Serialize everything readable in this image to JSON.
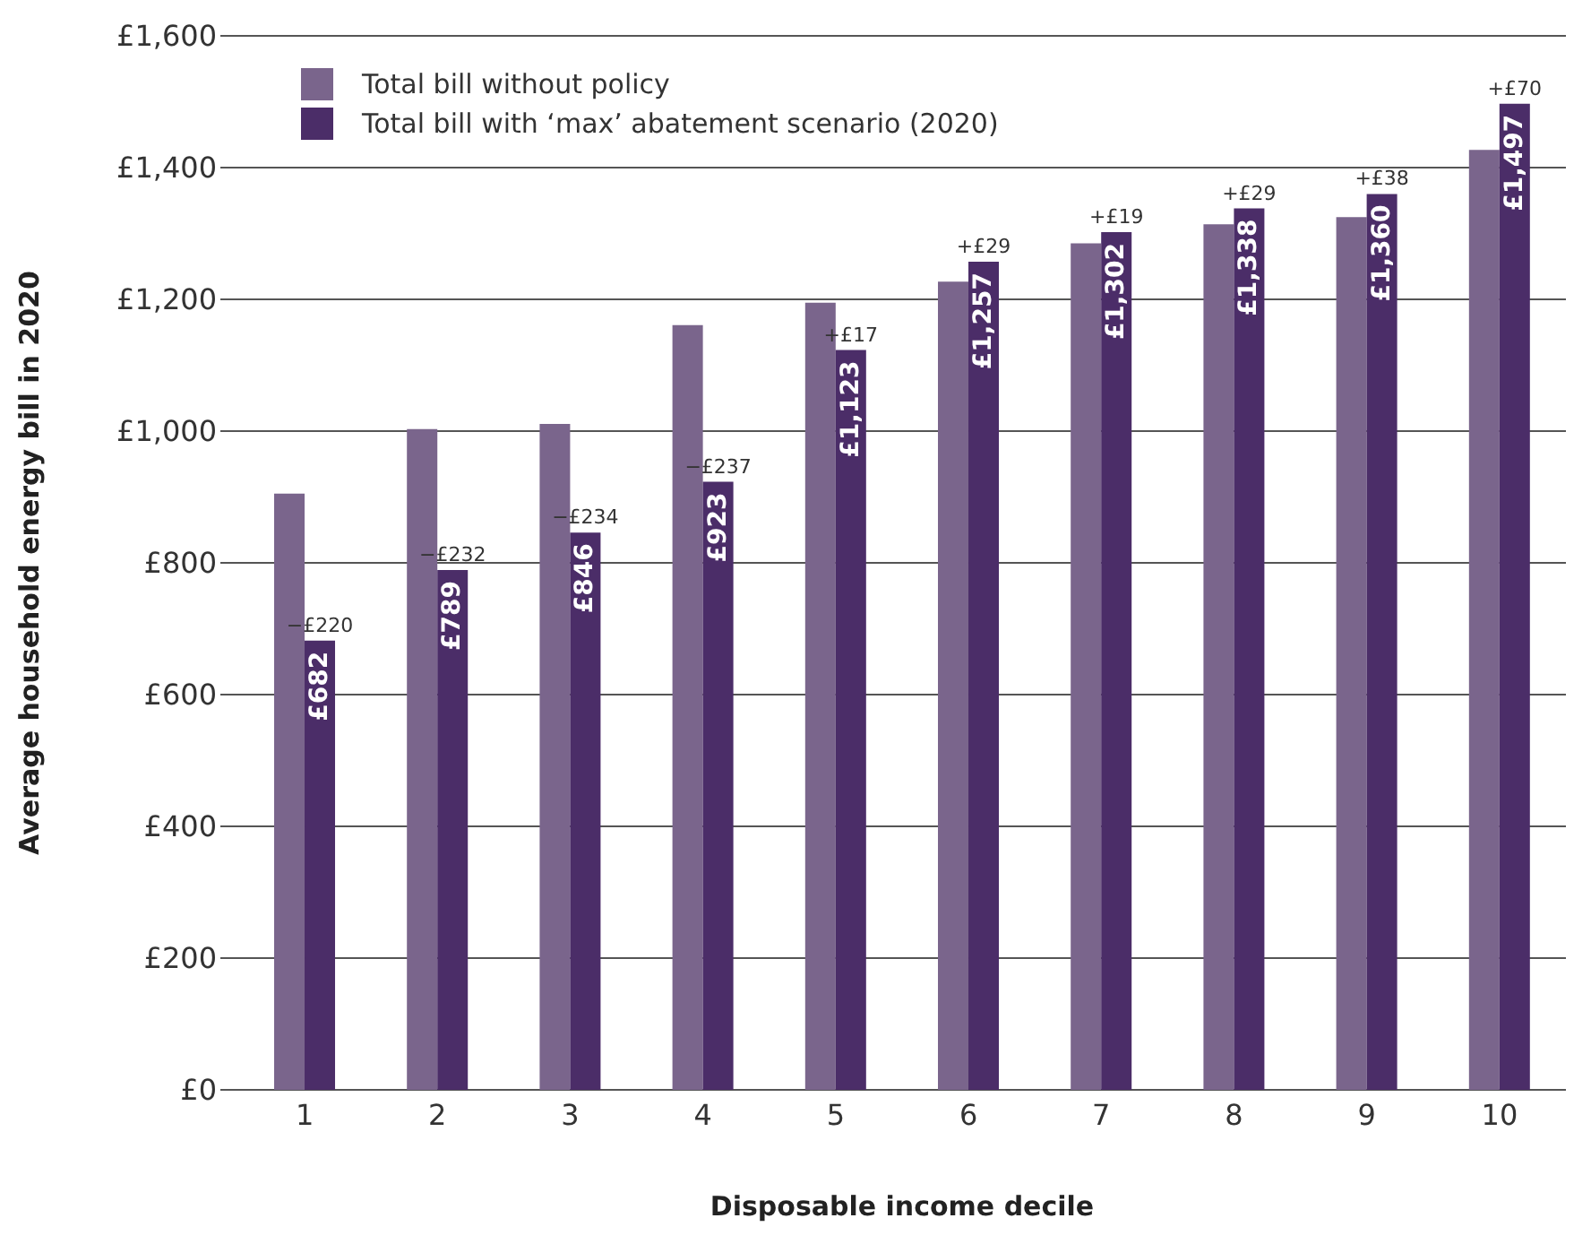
{
  "chart_data": {
    "type": "bar",
    "xlabel": "Disposable income decile",
    "ylabel": "Average household energy bill in 2020",
    "categories": [
      "1",
      "2",
      "3",
      "4",
      "5",
      "6",
      "7",
      "8",
      "9",
      "10"
    ],
    "series": [
      {
        "name": "Total bill without policy",
        "color": "#7a658c",
        "values": [
          905,
          1003,
          1011,
          1161,
          1195,
          1227,
          1285,
          1314,
          1325,
          1427
        ]
      },
      {
        "name": "Total bill with ‘max’ abatement scenario (2020)",
        "color": "#4b2d68",
        "values": [
          682,
          789,
          846,
          923,
          1123,
          1257,
          1302,
          1338,
          1360,
          1497
        ],
        "value_labels": [
          "£682",
          "£789",
          "£846",
          "£923",
          "£1,123",
          "£1,257",
          "£1,302",
          "£1,338",
          "£1,360",
          "£1,497"
        ]
      }
    ],
    "ylim": [
      0,
      1600
    ],
    "yticks": [
      {
        "value": 0,
        "label": "£0"
      },
      {
        "value": 200,
        "label": "£200"
      },
      {
        "value": 400,
        "label": "£400"
      },
      {
        "value": 600,
        "label": "£600"
      },
      {
        "value": 800,
        "label": "£800"
      },
      {
        "value": 1000,
        "label": "£1,000"
      },
      {
        "value": 1200,
        "label": "£1,200"
      },
      {
        "value": 1400,
        "label": "£1,400"
      },
      {
        "value": 1600,
        "label": "£1,600"
      }
    ],
    "annotations": [
      {
        "text": "−£220",
        "x": "1",
        "y": 682
      },
      {
        "text": "−£232",
        "x": "2",
        "y": 789
      },
      {
        "text": "−£234",
        "x": "3",
        "y": 846
      },
      {
        "text": "−£237",
        "x": "4",
        "y": 923
      },
      {
        "text": "+£17",
        "x": "5",
        "y": 1123
      },
      {
        "text": "+£29",
        "x": "6",
        "y": 1257
      },
      {
        "text": "+£19",
        "x": "7",
        "y": 1302
      },
      {
        "text": "+£29",
        "x": "8",
        "y": 1338
      },
      {
        "text": "+£38",
        "x": "9",
        "y": 1360
      },
      {
        "text": "+£70",
        "x": "10",
        "y": 1497
      }
    ],
    "grid": "y",
    "legend": "top left"
  }
}
